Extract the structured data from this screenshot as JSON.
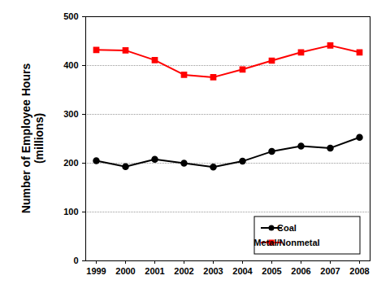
{
  "chart_data": {
    "type": "line",
    "y_label": "Number of Employee Hours\n(millions)",
    "categories": [
      "1999",
      "2000",
      "2001",
      "2002",
      "2003",
      "2004",
      "2005",
      "2006",
      "2007",
      "2008"
    ],
    "series": [
      {
        "name": "Coal",
        "color": "#000000",
        "marker": "circle",
        "values": [
          205,
          193,
          208,
          200,
          192,
          204,
          224,
          235,
          231,
          253
        ]
      },
      {
        "name": "Metal/Nonmetal",
        "color": "#ff0000",
        "marker": "square",
        "values": [
          432,
          431,
          411,
          381,
          376,
          392,
          410,
          427,
          441,
          427
        ]
      }
    ],
    "ylim": [
      0,
      500
    ],
    "yticks": [
      0,
      100,
      200,
      300,
      400,
      500
    ],
    "grid": true,
    "legend": "lower right"
  }
}
